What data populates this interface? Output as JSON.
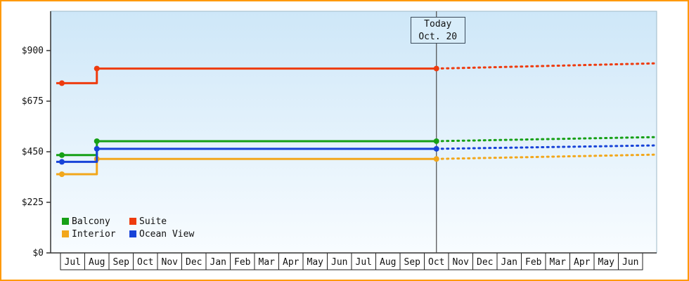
{
  "colors": {
    "frame_border": "#FF9900",
    "plot_bg_top": "#CEE7F8",
    "plot_bg_bottom": "#F8FCFF",
    "plot_border": "#9DB8C8",
    "axis": "#333333",
    "today_line": "#4A4A4A",
    "today_box_bg": "#D8EDFA",
    "today_box_border": "#3A4A5A",
    "cell_bg": "#FFFFFF",
    "cell_border": "#222222",
    "text": "#111111"
  },
  "today": {
    "line1": "Today",
    "line2": "Oct. 20"
  },
  "chart_data": {
    "type": "line",
    "step": true,
    "title": "",
    "categories": [
      "Jul",
      "Aug",
      "Sep",
      "Oct",
      "Nov",
      "Dec",
      "Jan",
      "Feb",
      "Mar",
      "Apr",
      "May",
      "Jun",
      "Jul",
      "Aug",
      "Sep",
      "Oct",
      "Nov",
      "Dec",
      "Jan",
      "Feb",
      "Mar",
      "Apr",
      "May",
      "Jun"
    ],
    "today_index": 15,
    "annotation": "Today Oct. 20",
    "ylim": [
      0,
      1075
    ],
    "y_tick_values": [
      0,
      225,
      450,
      675,
      900
    ],
    "y_tick_labels": [
      "$0",
      "$225",
      "$450",
      "$675",
      "$900"
    ],
    "grid": false,
    "legend_position": "bottom-left",
    "series": [
      {
        "name": "Balcony",
        "color": "#16A016",
        "history_style": "solid",
        "forecast_style": "dotted",
        "start_value": 435,
        "step_at_index": 1,
        "stepped_value": 497,
        "projection_end_value": 515
      },
      {
        "name": "Suite",
        "color": "#EE3B0E",
        "history_style": "solid",
        "forecast_style": "dotted",
        "start_value": 755,
        "step_at_index": 1,
        "stepped_value": 820,
        "projection_end_value": 843
      },
      {
        "name": "Interior",
        "color": "#F2A71B",
        "history_style": "solid",
        "forecast_style": "dotted",
        "start_value": 350,
        "step_at_index": 1,
        "stepped_value": 418,
        "projection_end_value": 437
      },
      {
        "name": "Ocean View",
        "color": "#1743D8",
        "history_style": "solid",
        "forecast_style": "dotted",
        "start_value": 405,
        "step_at_index": 1,
        "stepped_value": 463,
        "projection_end_value": 478
      }
    ]
  }
}
